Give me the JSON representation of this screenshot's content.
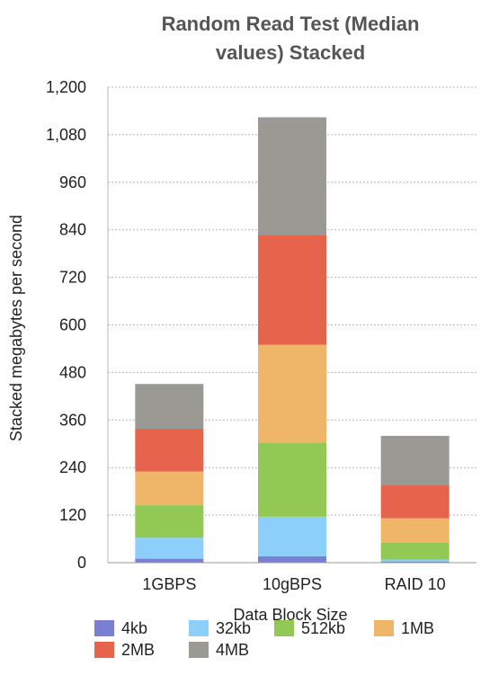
{
  "chart_data": {
    "type": "bar",
    "stacked": true,
    "title_lines": [
      "Random Read Test (Median",
      "values) Stacked"
    ],
    "xlabel": "Data Block Size",
    "ylabel": "Stacked megabytes per second",
    "ylim": [
      0,
      1200
    ],
    "yticks": [
      0,
      120,
      240,
      360,
      480,
      600,
      720,
      840,
      960,
      1080,
      1200
    ],
    "ytick_labels": [
      "0",
      "120",
      "240",
      "360",
      "480",
      "600",
      "720",
      "840",
      "960",
      "1,080",
      "1,200"
    ],
    "grid": true,
    "legend_position": "bottom",
    "categories": [
      "1GBPS",
      "10gBPS",
      "RAID 10"
    ],
    "series": [
      {
        "name": "4kb",
        "color": "#7b7fd4",
        "values": [
          10,
          16,
          3
        ]
      },
      {
        "name": "32kb",
        "color": "#8ccffb",
        "values": [
          53,
          100,
          5
        ]
      },
      {
        "name": "512kb",
        "color": "#92c955",
        "values": [
          82,
          187,
          42
        ]
      },
      {
        "name": "1MB",
        "color": "#efb66a",
        "values": [
          85,
          247,
          62
        ]
      },
      {
        "name": "2MB",
        "color": "#e5644b",
        "values": [
          108,
          277,
          83
        ]
      },
      {
        "name": "4MB",
        "color": "#9a9993",
        "values": [
          113,
          297,
          125
        ]
      }
    ]
  }
}
